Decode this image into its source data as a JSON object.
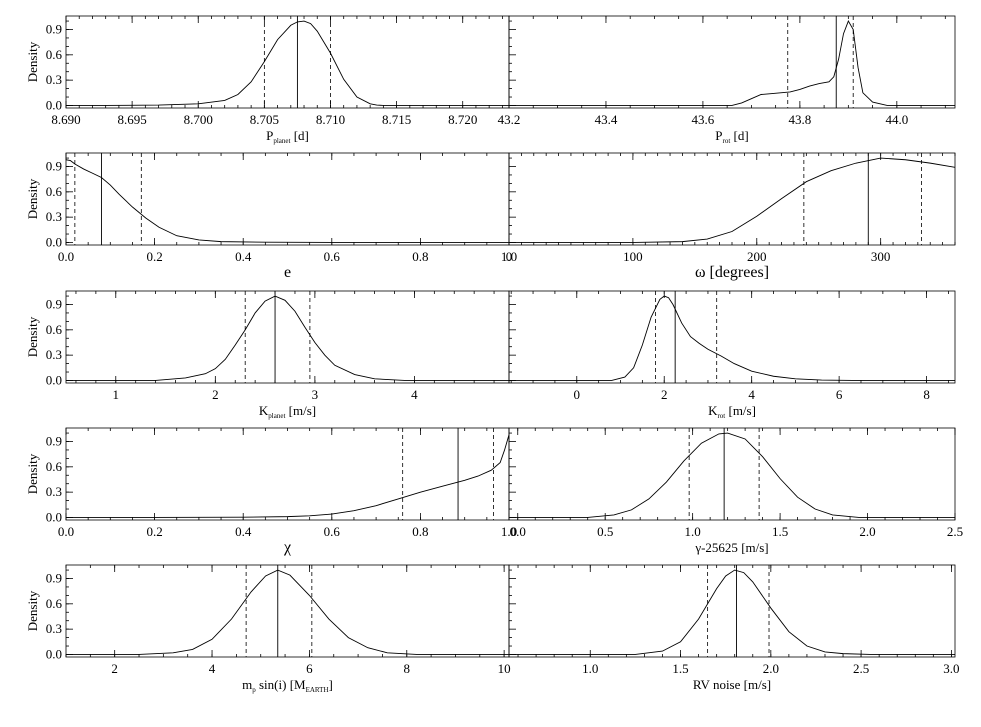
{
  "chart_data": [
    {
      "type": "line",
      "row": 0,
      "col": 0,
      "xlim": [
        8.69,
        8.7235
      ],
      "ylim": [
        -0.03,
        1.06
      ],
      "xticks": [
        8.69,
        8.695,
        8.7,
        8.705,
        8.71,
        8.715,
        8.72
      ],
      "xtick_labels": [
        "8.690",
        "8.695",
        "8.700",
        "8.705",
        "8.710",
        "8.715",
        "8.720"
      ],
      "xminor": 0.001,
      "xlabel": "P",
      "xlabel_sub": "planet",
      "xlabel_suffix": " [d]",
      "ylabel": "Density",
      "yticks": [
        0.0,
        0.3,
        0.6,
        0.9
      ],
      "ytick_labels": [
        "0.0",
        "0.3",
        "0.6",
        "0.9"
      ],
      "x": [
        8.693,
        8.697,
        8.7,
        8.702,
        8.703,
        8.704,
        8.705,
        8.706,
        8.707,
        8.7075,
        8.708,
        8.7085,
        8.709,
        8.71,
        8.711,
        8.712,
        8.713,
        8.7135,
        8.714
      ],
      "y": [
        0.0,
        0.005,
        0.02,
        0.06,
        0.13,
        0.28,
        0.52,
        0.78,
        0.95,
        0.99,
        1.0,
        0.97,
        0.88,
        0.62,
        0.31,
        0.1,
        0.02,
        0.005,
        0.0
      ],
      "median": 8.7075,
      "lower": 8.705,
      "upper": 8.71
    },
    {
      "type": "line",
      "row": 0,
      "col": 1,
      "xlim": [
        43.2,
        44.12
      ],
      "ylim": [
        -0.03,
        1.06
      ],
      "xticks": [
        43.2,
        43.4,
        43.6,
        43.8,
        44.0
      ],
      "xtick_labels": [
        "43.2",
        "43.4",
        "43.6",
        "43.8",
        "44.0"
      ],
      "xminor": 0.05,
      "xlabel": "P",
      "xlabel_sub": "rot",
      "xlabel_suffix": " [d]",
      "ylabel": "",
      "yticks": [],
      "ytick_labels": [],
      "x": [
        43.66,
        43.68,
        43.7,
        43.72,
        43.74,
        43.76,
        43.78,
        43.8,
        43.82,
        43.84,
        43.86,
        43.87,
        43.88,
        43.89,
        43.9,
        43.91,
        43.92,
        43.93,
        43.95,
        43.98
      ],
      "y": [
        0.0,
        0.03,
        0.08,
        0.13,
        0.14,
        0.15,
        0.16,
        0.19,
        0.23,
        0.26,
        0.28,
        0.34,
        0.55,
        0.85,
        1.0,
        0.9,
        0.45,
        0.15,
        0.04,
        0.0
      ],
      "median": 43.875,
      "lower": 43.775,
      "upper": 43.91
    },
    {
      "type": "line",
      "row": 1,
      "col": 0,
      "xlim": [
        0.0,
        1.0
      ],
      "ylim": [
        -0.03,
        1.06
      ],
      "xticks": [
        0.0,
        0.2,
        0.4,
        0.6,
        0.8,
        1.0
      ],
      "xtick_labels": [
        "0.0",
        "0.2",
        "0.4",
        "0.6",
        "0.8",
        "1.0"
      ],
      "xminor": 0.05,
      "xlabel": "e",
      "xlabel_sub": "",
      "xlabel_suffix": "",
      "ylabel": "Density",
      "yticks": [
        0.0,
        0.3,
        0.6,
        0.9
      ],
      "ytick_labels": [
        "0.0",
        "0.3",
        "0.6",
        "0.9"
      ],
      "x": [
        0.0,
        0.01,
        0.02,
        0.04,
        0.06,
        0.08,
        0.1,
        0.12,
        0.15,
        0.18,
        0.21,
        0.25,
        0.3,
        0.35,
        0.45,
        0.6,
        1.0
      ],
      "y": [
        0.98,
        0.97,
        0.93,
        0.87,
        0.82,
        0.77,
        0.68,
        0.57,
        0.42,
        0.29,
        0.18,
        0.08,
        0.03,
        0.01,
        0.003,
        0.0,
        0.0
      ],
      "median": 0.08,
      "lower": 0.02,
      "upper": 0.17
    },
    {
      "type": "line",
      "row": 1,
      "col": 1,
      "xlim": [
        0,
        360
      ],
      "ylim": [
        -0.03,
        1.06
      ],
      "xticks": [
        0,
        100,
        200,
        300
      ],
      "xtick_labels": [
        "0",
        "100",
        "200",
        "300"
      ],
      "xminor": 10,
      "xlabel": "ω",
      "xlabel_sub": "",
      "xlabel_suffix": " [degrees]",
      "ylabel": "",
      "yticks": [],
      "ytick_labels": [],
      "x": [
        100,
        140,
        160,
        180,
        200,
        220,
        240,
        260,
        280,
        300,
        320,
        340,
        360
      ],
      "y": [
        0.0,
        0.01,
        0.04,
        0.13,
        0.31,
        0.52,
        0.72,
        0.85,
        0.94,
        1.0,
        0.98,
        0.94,
        0.89
      ],
      "median": 290,
      "lower": 238,
      "upper": 333
    },
    {
      "type": "line",
      "row": 2,
      "col": 0,
      "xlim": [
        0.5,
        4.95
      ],
      "ylim": [
        -0.03,
        1.06
      ],
      "xticks": [
        1,
        2,
        3,
        4
      ],
      "xtick_labels": [
        "1",
        "2",
        "3",
        "4"
      ],
      "xminor": 0.2,
      "xlabel": "K",
      "xlabel_sub": "planet",
      "xlabel_suffix": " [m/s]",
      "ylabel": "Density",
      "yticks": [
        0.0,
        0.3,
        0.6,
        0.9
      ],
      "ytick_labels": [
        "0.0",
        "0.3",
        "0.6",
        "0.9"
      ],
      "x": [
        1.4,
        1.7,
        1.9,
        2.0,
        2.1,
        2.2,
        2.3,
        2.4,
        2.5,
        2.6,
        2.7,
        2.8,
        2.9,
        3.0,
        3.1,
        3.2,
        3.4,
        3.6,
        3.9
      ],
      "y": [
        0.0,
        0.03,
        0.08,
        0.14,
        0.25,
        0.42,
        0.6,
        0.8,
        0.94,
        1.0,
        0.95,
        0.82,
        0.63,
        0.45,
        0.3,
        0.18,
        0.07,
        0.02,
        0.0
      ],
      "median": 2.6,
      "lower": 2.3,
      "upper": 2.95
    },
    {
      "type": "line",
      "row": 2,
      "col": 1,
      "xlim": [
        -1.55,
        8.65
      ],
      "ylim": [
        -0.03,
        1.06
      ],
      "xticks": [
        0,
        2,
        4,
        6,
        8
      ],
      "xtick_labels": [
        "0",
        "2",
        "4",
        "6",
        "8"
      ],
      "xminor": 0.5,
      "xlabel": "K",
      "xlabel_sub": "rot",
      "xlabel_suffix": " [m/s]",
      "ylabel": "",
      "yticks": [],
      "ytick_labels": [],
      "x": [
        0.8,
        1.1,
        1.3,
        1.5,
        1.7,
        1.9,
        2.0,
        2.1,
        2.2,
        2.4,
        2.6,
        2.8,
        3.0,
        3.3,
        3.6,
        4.0,
        4.5,
        5.0,
        5.6,
        6.3
      ],
      "y": [
        0.0,
        0.04,
        0.15,
        0.42,
        0.75,
        0.96,
        1.0,
        0.98,
        0.9,
        0.68,
        0.52,
        0.44,
        0.37,
        0.29,
        0.2,
        0.11,
        0.05,
        0.02,
        0.005,
        0.0
      ],
      "median": 2.25,
      "lower": 1.8,
      "upper": 3.2
    },
    {
      "type": "line",
      "row": 3,
      "col": 0,
      "xlim": [
        0.0,
        1.0
      ],
      "ylim": [
        -0.03,
        1.06
      ],
      "xticks": [
        0.0,
        0.2,
        0.4,
        0.6,
        0.8,
        1.0
      ],
      "xtick_labels": [
        "0.0",
        "0.2",
        "0.4",
        "0.6",
        "0.8",
        "1.0"
      ],
      "xminor": 0.05,
      "xlabel": "χ",
      "xlabel_sub": "",
      "xlabel_suffix": "",
      "ylabel": "Density",
      "yticks": [
        0.0,
        0.3,
        0.6,
        0.9
      ],
      "ytick_labels": [
        "0.0",
        "0.3",
        "0.6",
        "0.9"
      ],
      "x": [
        0.2,
        0.4,
        0.5,
        0.55,
        0.6,
        0.65,
        0.7,
        0.75,
        0.8,
        0.85,
        0.9,
        0.93,
        0.96,
        0.98,
        0.99,
        1.0
      ],
      "y": [
        0.0,
        0.003,
        0.01,
        0.02,
        0.04,
        0.08,
        0.14,
        0.22,
        0.3,
        0.37,
        0.44,
        0.49,
        0.56,
        0.65,
        0.8,
        0.98
      ],
      "median": 0.885,
      "lower": 0.76,
      "upper": 0.965
    },
    {
      "type": "line",
      "row": 3,
      "col": 1,
      "xlim": [
        -0.05,
        2.5
      ],
      "ylim": [
        -0.03,
        1.06
      ],
      "xticks": [
        0.0,
        0.5,
        1.0,
        1.5,
        2.0,
        2.5
      ],
      "xtick_labels": [
        "0.0",
        "0.5",
        "1.0",
        "1.5",
        "2.0",
        "2.5"
      ],
      "xminor": 0.1,
      "xlabel": "γ-25625",
      "xlabel_sub": "",
      "xlabel_suffix": " [m/s]",
      "ylabel": "",
      "yticks": [],
      "ytick_labels": [],
      "x": [
        0.4,
        0.55,
        0.65,
        0.75,
        0.85,
        0.95,
        1.05,
        1.15,
        1.2,
        1.3,
        1.4,
        1.5,
        1.6,
        1.7,
        1.8,
        1.95
      ],
      "y": [
        0.0,
        0.03,
        0.09,
        0.22,
        0.42,
        0.67,
        0.88,
        0.99,
        1.0,
        0.93,
        0.72,
        0.46,
        0.24,
        0.1,
        0.03,
        0.0
      ],
      "median": 1.18,
      "lower": 0.98,
      "upper": 1.38
    },
    {
      "type": "line",
      "row": 4,
      "col": 0,
      "xlim": [
        1.0,
        10.1
      ],
      "ylim": [
        -0.03,
        1.06
      ],
      "xticks": [
        2,
        4,
        6,
        8,
        10
      ],
      "xtick_labels": [
        "2",
        "4",
        "6",
        "8",
        "10"
      ],
      "xminor": 0.5,
      "xlabel": "m",
      "xlabel_sub": "p",
      "xlabel_suffix": " sin(i)  [M",
      "xlabel_sub2": "EARTH",
      "xlabel_suffix2": "]",
      "ylabel": "Density",
      "yticks": [
        0.0,
        0.3,
        0.6,
        0.9
      ],
      "ytick_labels": [
        "0.0",
        "0.3",
        "0.6",
        "0.9"
      ],
      "x": [
        2.5,
        3.2,
        3.6,
        4.0,
        4.4,
        4.8,
        5.1,
        5.35,
        5.6,
        6.0,
        6.4,
        6.8,
        7.2,
        7.6,
        8.2
      ],
      "y": [
        0.0,
        0.02,
        0.06,
        0.18,
        0.42,
        0.74,
        0.93,
        1.0,
        0.94,
        0.7,
        0.42,
        0.2,
        0.08,
        0.02,
        0.0
      ],
      "median": 5.35,
      "lower": 4.7,
      "upper": 6.05
    },
    {
      "type": "line",
      "row": 4,
      "col": 1,
      "xlim": [
        0.55,
        3.02
      ],
      "ylim": [
        -0.03,
        1.06
      ],
      "xticks": [
        1.0,
        1.5,
        2.0,
        2.5,
        3.0
      ],
      "xtick_labels": [
        "1.0",
        "1.5",
        "2.0",
        "2.5",
        "3.0"
      ],
      "xminor": 0.1,
      "xlabel": "RV noise",
      "xlabel_sub": "",
      "xlabel_suffix": " [m/s]",
      "ylabel": "",
      "yticks": [],
      "ytick_labels": [],
      "x": [
        1.25,
        1.4,
        1.5,
        1.6,
        1.7,
        1.75,
        1.8,
        1.85,
        1.9,
        2.0,
        2.1,
        2.2,
        2.3,
        2.4,
        2.55
      ],
      "y": [
        0.0,
        0.04,
        0.15,
        0.42,
        0.78,
        0.93,
        1.0,
        0.97,
        0.86,
        0.55,
        0.27,
        0.1,
        0.03,
        0.01,
        0.0
      ],
      "median": 1.81,
      "lower": 1.65,
      "upper": 1.99
    }
  ]
}
